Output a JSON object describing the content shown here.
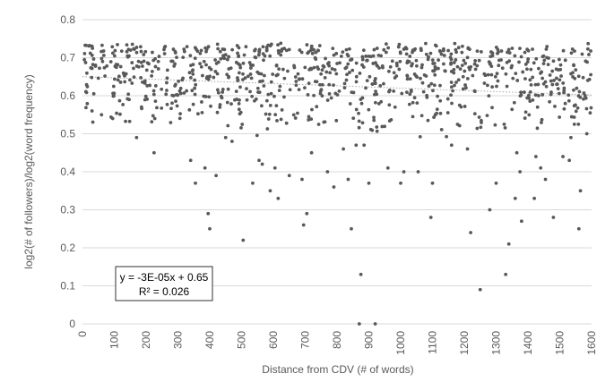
{
  "colors": {
    "points": "#595959",
    "grid": "#d9d9d9",
    "text": "#595959",
    "trendline": "#a6a6a6"
  },
  "chart_data": {
    "type": "scatter",
    "xlabel": "Distance from CDV (# of words)",
    "ylabel": "log2(# of followers)/log2(word frequency)",
    "xlim": [
      0,
      1600
    ],
    "ylim": [
      0,
      0.8
    ],
    "x_ticks": [
      "0",
      "100",
      "200",
      "300",
      "400",
      "500",
      "600",
      "700",
      "800",
      "900",
      "1000",
      "1100",
      "1200",
      "1300",
      "1400",
      "1500",
      "1600"
    ],
    "y_ticks": [
      "0",
      "0.1",
      "0.2",
      "0.3",
      "0.4",
      "0.5",
      "0.6",
      "0.7",
      "0.8"
    ],
    "grid": "horizontal",
    "trendline": {
      "slope": -3e-05,
      "intercept": 0.65,
      "style": "dotted"
    },
    "equation": "y = -3E-05x + 0.65",
    "r_squared": "R² = 0.026",
    "outliers": [
      {
        "x": 30,
        "y": 0.56
      },
      {
        "x": 95,
        "y": 0.54
      },
      {
        "x": 170,
        "y": 0.49
      },
      {
        "x": 225,
        "y": 0.45
      },
      {
        "x": 340,
        "y": 0.43
      },
      {
        "x": 355,
        "y": 0.37
      },
      {
        "x": 385,
        "y": 0.41
      },
      {
        "x": 395,
        "y": 0.29
      },
      {
        "x": 400,
        "y": 0.25
      },
      {
        "x": 420,
        "y": 0.39
      },
      {
        "x": 450,
        "y": 0.49
      },
      {
        "x": 470,
        "y": 0.48
      },
      {
        "x": 505,
        "y": 0.22
      },
      {
        "x": 535,
        "y": 0.37
      },
      {
        "x": 555,
        "y": 0.43
      },
      {
        "x": 565,
        "y": 0.42
      },
      {
        "x": 590,
        "y": 0.35
      },
      {
        "x": 605,
        "y": 0.41
      },
      {
        "x": 615,
        "y": 0.33
      },
      {
        "x": 650,
        "y": 0.39
      },
      {
        "x": 690,
        "y": 0.38
      },
      {
        "x": 695,
        "y": 0.26
      },
      {
        "x": 705,
        "y": 0.29
      },
      {
        "x": 720,
        "y": 0.45
      },
      {
        "x": 770,
        "y": 0.4
      },
      {
        "x": 790,
        "y": 0.36
      },
      {
        "x": 820,
        "y": 0.46
      },
      {
        "x": 835,
        "y": 0.38
      },
      {
        "x": 845,
        "y": 0.25
      },
      {
        "x": 860,
        "y": 0.47
      },
      {
        "x": 870,
        "y": 0.0
      },
      {
        "x": 875,
        "y": 0.13
      },
      {
        "x": 885,
        "y": 0.47
      },
      {
        "x": 900,
        "y": 0.37
      },
      {
        "x": 920,
        "y": 0.0
      },
      {
        "x": 960,
        "y": 0.41
      },
      {
        "x": 1000,
        "y": 0.37
      },
      {
        "x": 1010,
        "y": 0.4
      },
      {
        "x": 1055,
        "y": 0.4
      },
      {
        "x": 1095,
        "y": 0.28
      },
      {
        "x": 1100,
        "y": 0.37
      },
      {
        "x": 1160,
        "y": 0.47
      },
      {
        "x": 1210,
        "y": 0.46
      },
      {
        "x": 1220,
        "y": 0.24
      },
      {
        "x": 1250,
        "y": 0.09
      },
      {
        "x": 1280,
        "y": 0.3
      },
      {
        "x": 1300,
        "y": 0.37
      },
      {
        "x": 1330,
        "y": 0.13
      },
      {
        "x": 1340,
        "y": 0.21
      },
      {
        "x": 1360,
        "y": 0.33
      },
      {
        "x": 1365,
        "y": 0.45
      },
      {
        "x": 1375,
        "y": 0.4
      },
      {
        "x": 1380,
        "y": 0.27
      },
      {
        "x": 1420,
        "y": 0.33
      },
      {
        "x": 1425,
        "y": 0.44
      },
      {
        "x": 1440,
        "y": 0.41
      },
      {
        "x": 1455,
        "y": 0.38
      },
      {
        "x": 1480,
        "y": 0.28
      },
      {
        "x": 1510,
        "y": 0.44
      },
      {
        "x": 1530,
        "y": 0.43
      },
      {
        "x": 1535,
        "y": 0.49
      },
      {
        "x": 1560,
        "y": 0.25
      },
      {
        "x": 1565,
        "y": 0.35
      },
      {
        "x": 1585,
        "y": 0.5
      }
    ],
    "dense_band": {
      "count": 900,
      "seed": 12345,
      "x_range": [
        0,
        1600
      ],
      "y_range": [
        0.5,
        0.74
      ]
    }
  }
}
